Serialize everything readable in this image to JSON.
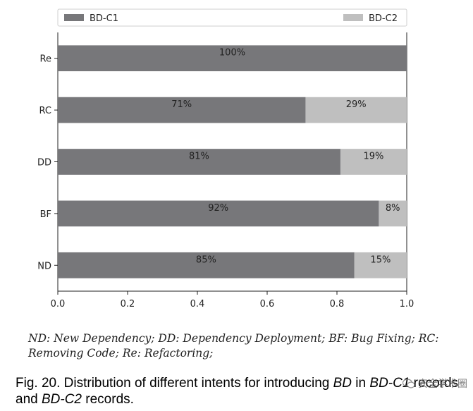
{
  "chart_data": {
    "type": "bar",
    "orientation": "horizontal",
    "stacked": true,
    "categories": [
      "Re",
      "RC",
      "DD",
      "BF",
      "ND"
    ],
    "series": [
      {
        "name": "BD-C1",
        "values": [
          1.0,
          0.71,
          0.81,
          0.92,
          0.85
        ],
        "labels": [
          "100%",
          "71%",
          "81%",
          "92%",
          "85%"
        ],
        "color": "#77777a"
      },
      {
        "name": "BD-C2",
        "values": [
          0.0,
          0.29,
          0.19,
          0.08,
          0.15
        ],
        "labels": [
          "",
          "29%",
          "19%",
          "8%",
          "15%"
        ],
        "color": "#bfbfbf"
      }
    ],
    "xlim": [
      0,
      1.0
    ],
    "xticks": [
      "0.0",
      "0.2",
      "0.4",
      "0.6",
      "0.8",
      "1.0"
    ],
    "grid": false,
    "legend": "top"
  },
  "note": {
    "line1": "ND: New Dependency; DD: Dependency Deployment; BF: Bug Fixing; RC:",
    "line2": "Removing Code; Re: Refactoring;"
  },
  "caption": {
    "prefix": "Fig. 20. Distribution of different intents for introducing ",
    "term1": "BD",
    "mid1": " in ",
    "term2": "BD-C1",
    "mid2": " records and ",
    "term3": "BD-C2",
    "suffix": " records."
  },
  "watermark": {
    "text": "安全学术圈",
    "icon": "wechat-icon"
  }
}
